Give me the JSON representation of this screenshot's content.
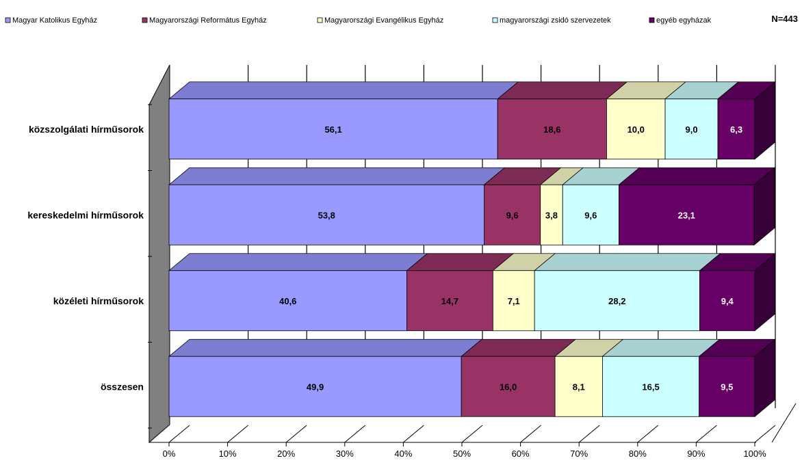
{
  "chart_data": {
    "type": "bar",
    "orientation": "horizontal",
    "stacked": "100%",
    "three_d": true,
    "sample_size": "N=443",
    "categories": [
      "közszolgálati hírműsorok",
      "kereskedelmi hírműsorok",
      "közéleti hírműsorok",
      "összesen"
    ],
    "series": [
      {
        "name": "Magyar Katolikus Egyház",
        "values": [
          56.1,
          53.8,
          40.6,
          49.9
        ],
        "labels": [
          "56,1",
          "53,8",
          "40,6",
          "49,9"
        ],
        "color": "#9999FF",
        "label_color": "#000000"
      },
      {
        "name": "Magyarországi Református Egyház",
        "values": [
          18.6,
          9.6,
          14.7,
          16.0
        ],
        "labels": [
          "18,6",
          "9,6",
          "14,7",
          "16,0"
        ],
        "color": "#993366",
        "label_color": "#000000"
      },
      {
        "name": "Magyarországi Evangélikus Egyház",
        "values": [
          10.0,
          3.8,
          7.1,
          8.1
        ],
        "labels": [
          "10,0",
          "3,8",
          "7,1",
          "8,1"
        ],
        "color": "#FFFFCC",
        "label_color": "#000000"
      },
      {
        "name": "magyarországi zsidó szervezetek",
        "values": [
          9.0,
          9.6,
          28.2,
          16.5
        ],
        "labels": [
          "9,0",
          "9,6",
          "28,2",
          "16,5"
        ],
        "color": "#CCFFFF",
        "label_color": "#000000"
      },
      {
        "name": "egyéb egyházak",
        "values": [
          6.3,
          23.1,
          9.4,
          9.5
        ],
        "labels": [
          "6,3",
          "23,1",
          "9,4",
          "9,5"
        ],
        "color": "#660066",
        "label_color": "#FFFFFF"
      }
    ],
    "x_ticks": [
      "0%",
      "10%",
      "20%",
      "30%",
      "40%",
      "50%",
      "60%",
      "70%",
      "80%",
      "90%",
      "100%"
    ],
    "xlim": [
      0,
      100
    ],
    "grid": true,
    "legend_position": "top"
  }
}
